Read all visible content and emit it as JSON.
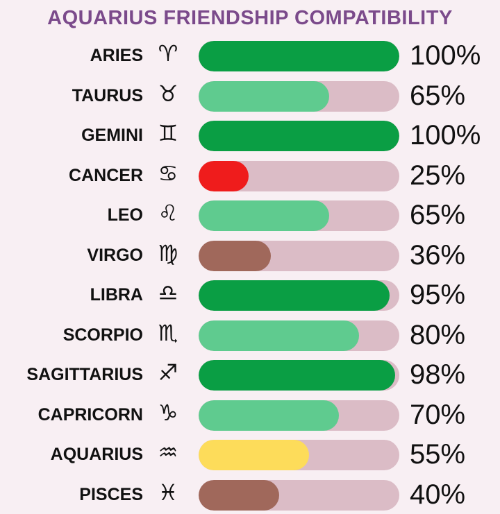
{
  "chart_data": {
    "type": "bar",
    "orientation": "horizontal",
    "title": "AQUARIUS FRIENDSHIP COMPATIBILITY",
    "xlim": [
      0,
      100
    ],
    "grid": false,
    "categories": [
      "ARIES",
      "TAURUS",
      "GEMINI",
      "CANCER",
      "LEO",
      "VIRGO",
      "LIBRA",
      "SCORPIO",
      "SAGITTARIUS",
      "CAPRICORN",
      "AQUARIUS",
      "PISCES"
    ],
    "symbols": [
      "♈",
      "♉",
      "♊",
      "♋",
      "♌",
      "♍",
      "♎",
      "♏",
      "♐",
      "♑",
      "♒",
      "♓"
    ],
    "values": [
      100,
      65,
      100,
      25,
      65,
      36,
      95,
      80,
      98,
      70,
      55,
      40
    ],
    "labels": [
      "100%",
      "65%",
      "100%",
      "25%",
      "65%",
      "36%",
      "95%",
      "80%",
      "98%",
      "70%",
      "55%",
      "40%"
    ],
    "bar_colors": [
      "#0a9e44",
      "#5fcb8f",
      "#0a9e44",
      "#ef1c1c",
      "#5fcb8f",
      "#a0685b",
      "#0a9e44",
      "#5fcb8f",
      "#0a9e44",
      "#5fcb8f",
      "#fddc5a",
      "#a0685b"
    ],
    "track_color": "#dbbcc6"
  }
}
